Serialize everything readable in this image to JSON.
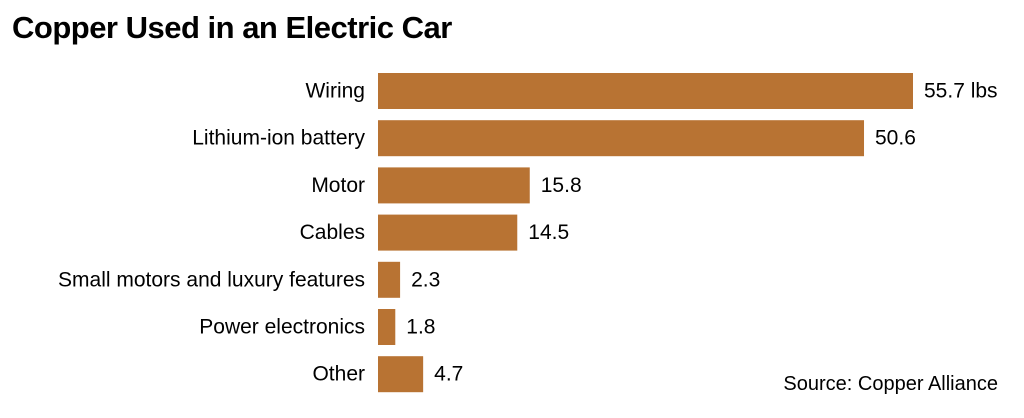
{
  "chart_data": {
    "type": "bar",
    "orientation": "horizontal",
    "title": "Copper Used in an Electric Car",
    "source": "Source: Copper Alliance",
    "unit_label": "lbs",
    "categories": [
      "Wiring",
      "Lithium-ion battery",
      "Motor",
      "Cables",
      "Small motors and luxury features",
      "Power electronics",
      "Other"
    ],
    "values": [
      55.7,
      50.6,
      15.8,
      14.5,
      2.3,
      1.8,
      4.7
    ],
    "value_labels": [
      "55.7 lbs",
      "50.6",
      "15.8",
      "14.5",
      "2.3",
      "1.8",
      "4.7"
    ],
    "bar_color": "#b87333",
    "xlim": [
      0,
      55.7
    ],
    "grid": false,
    "legend": "none"
  }
}
